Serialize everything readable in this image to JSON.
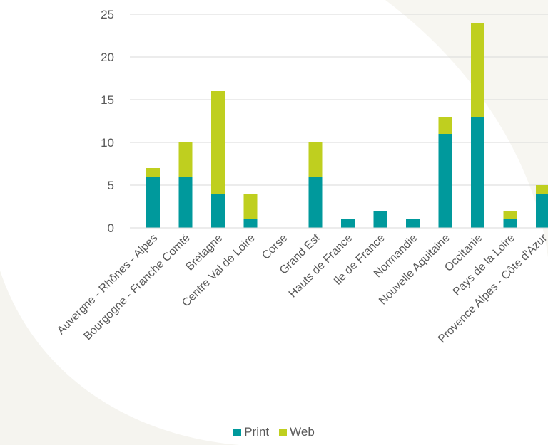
{
  "colors": {
    "print": "#00999c",
    "web": "#bfcf1f",
    "grid": "#d9d9d9",
    "text": "#595959",
    "background_tint": "#f5f4ef"
  },
  "legend": {
    "print_label": "Print",
    "web_label": "Web"
  },
  "chart_data": {
    "type": "bar",
    "stacked": true,
    "categories": [
      "Auvergne - Rhônes - Alpes",
      "Bourgogne - Franche Comté",
      "Bretagne",
      "Centre Val de Loire",
      "Corse",
      "Grand Est",
      "Hauts de France",
      "Ile de France",
      "Normandie",
      "Nouvelle Aquitaine",
      "Occitanie",
      "Pays de la Loire",
      "Provence Alpes - Côte d'Azur"
    ],
    "series": [
      {
        "name": "Print",
        "values": [
          6,
          6,
          4,
          1,
          0,
          6,
          1,
          2,
          1,
          11,
          13,
          1,
          4
        ]
      },
      {
        "name": "Web",
        "values": [
          1,
          4,
          12,
          3,
          0,
          4,
          0,
          0,
          0,
          2,
          11,
          1,
          1
        ]
      }
    ],
    "title": "",
    "xlabel": "",
    "ylabel": "",
    "ylim": [
      0,
      25
    ],
    "yticks": [
      0,
      5,
      10,
      15,
      20,
      25
    ],
    "grid": true,
    "legend_position": "bottom"
  }
}
